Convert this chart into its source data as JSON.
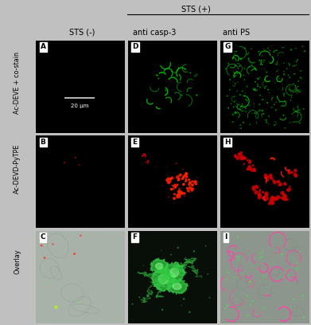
{
  "figsize": [
    3.91,
    4.08
  ],
  "dpi": 100,
  "panel_bg_colors": {
    "A": "#000000",
    "B": "#000000",
    "C": "#aab4aa",
    "D": "#000000",
    "E": "#000000",
    "F": "#0a100a",
    "G": "#000000",
    "H": "#000000",
    "I": "#8a948a"
  },
  "row_labels": [
    "Ac-DEVE + co-stain",
    "Ac-DEVD-PyTPE",
    "Overlay"
  ],
  "col_label_0": "STS (-)",
  "col_label_1": "anti casp-3",
  "col_label_2": "anti PS",
  "col_header": "STS (+)",
  "scale_bar_text": "20 μm",
  "title_fontsize": 7.0,
  "letter_fontsize": 6.5,
  "row_label_fontsize": 5.8,
  "scalebar_fontsize": 5.0,
  "outer_margin_color": "#c0c0c0",
  "green_color": "#00cc00",
  "green_bright": "#00ff00",
  "red_color": "#cc0000",
  "red_bright": "#ff2200",
  "pink_color": "#ff44aa"
}
